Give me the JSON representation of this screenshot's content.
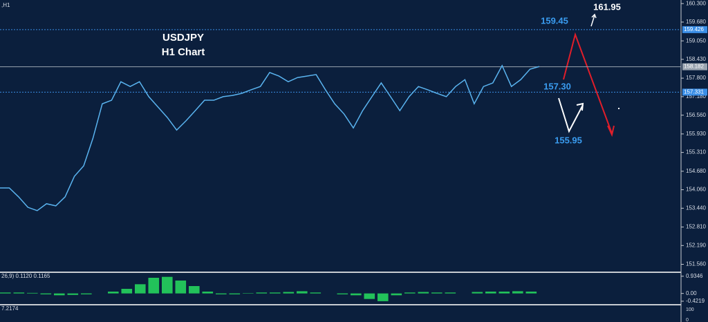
{
  "chart_data": {
    "type": "line",
    "symbol_label": ",H1",
    "title": "USDJPY",
    "subtitle": "H1 Chart",
    "color": "#5ab4f0",
    "series": [
      {
        "name": "USDJPY",
        "color": "#5ab4f0",
        "values": [
          154.12,
          154.12,
          153.82,
          153.47,
          153.36,
          153.59,
          153.52,
          153.82,
          154.51,
          154.86,
          155.79,
          156.94,
          157.06,
          157.68,
          157.52,
          157.68,
          157.18,
          156.83,
          156.48,
          156.06,
          156.37,
          156.71,
          157.06,
          157.06,
          157.18,
          157.22,
          157.29,
          157.41,
          157.52,
          157.99,
          157.87,
          157.68,
          157.82,
          157.87,
          157.92,
          157.41,
          156.94,
          156.6,
          156.13,
          156.71,
          157.18,
          157.64,
          157.18,
          156.71,
          157.18,
          157.52,
          157.41,
          157.29,
          157.18,
          157.52,
          157.75,
          156.94,
          157.52,
          157.64,
          158.22,
          157.52,
          157.75,
          158.1,
          158.19
        ]
      }
    ],
    "ylim": [
      151.34,
      160.42
    ],
    "yticks": [
      {
        "value": 160.3,
        "label": "160.300"
      },
      {
        "value": 159.68,
        "label": "159.680"
      },
      {
        "value": 159.05,
        "label": "159.050"
      },
      {
        "value": 158.43,
        "label": "158.430"
      },
      {
        "value": 157.8,
        "label": "157.800"
      },
      {
        "value": 157.18,
        "label": "157.180"
      },
      {
        "value": 156.56,
        "label": "156.560"
      },
      {
        "value": 155.93,
        "label": "155.930"
      },
      {
        "value": 155.31,
        "label": "155.310"
      },
      {
        "value": 154.68,
        "label": "154.680"
      },
      {
        "value": 154.06,
        "label": "154.060"
      },
      {
        "value": 153.44,
        "label": "153.440"
      },
      {
        "value": 152.81,
        "label": "152.810"
      },
      {
        "value": 152.19,
        "label": "152.190"
      },
      {
        "value": 151.56,
        "label": "151.560"
      }
    ],
    "levels": [
      {
        "value": 159.426,
        "label": "159.426",
        "color": "#3a8ee6",
        "style": "dotted"
      },
      {
        "value": 158.182,
        "label": "158.182",
        "color": "#9aa4b0",
        "style": "solid"
      },
      {
        "value": 157.331,
        "label": "157.331",
        "color": "#3a8ee6",
        "style": "dotted"
      }
    ],
    "annotations": [
      {
        "text": "159.45",
        "value": 159.45
      },
      {
        "text": "161.95",
        "value": 161.95
      },
      {
        "text": "157.30",
        "value": 157.3
      },
      {
        "text": "155.95",
        "value": 155.95
      }
    ],
    "indicator": {
      "label": "26,9) 0.1120 0.1165",
      "ylim": [
        -0.5,
        1.0
      ],
      "yticks": [
        0.9346,
        {
          "value": 0,
          "label": "0.00"
        },
        -0.4219
      ],
      "color": "#22c25a",
      "values": [
        0.05,
        0.05,
        0.03,
        -0.05,
        -0.1,
        -0.08,
        -0.05,
        0,
        0.1,
        0.25,
        0.5,
        0.85,
        0.9,
        0.7,
        0.4,
        0.1,
        -0.05,
        -0.05,
        0.02,
        0.05,
        0.05,
        0.08,
        0.12,
        0.05,
        0,
        -0.05,
        -0.1,
        -0.3,
        -0.42,
        -0.1,
        0.05,
        0.08,
        0.05,
        0.05,
        0,
        0.08,
        0.1,
        0.1,
        0.12,
        0.1
      ]
    },
    "oscillator": {
      "label": "7.2174",
      "yticks": [
        100,
        0
      ]
    }
  }
}
